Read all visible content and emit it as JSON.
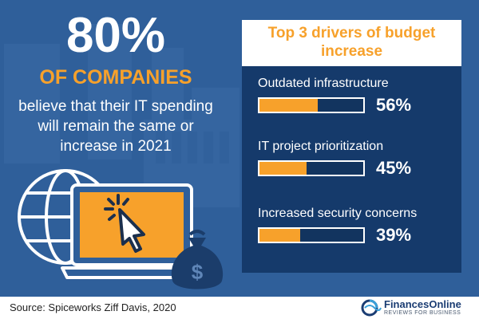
{
  "headline": {
    "percent": "80%",
    "subject": "OF COMPANIES",
    "description": "believe that their IT spending will remain the same or increase in 2021"
  },
  "chart_data": {
    "type": "bar",
    "title": "Top 3 drivers of budget increase",
    "categories": [
      "Outdated infrastructure",
      "IT project prioritization",
      "Increased security concerns"
    ],
    "values": [
      56,
      45,
      39
    ],
    "value_labels": [
      "56%",
      "45%",
      "39%"
    ],
    "ylim": [
      0,
      100
    ],
    "orientation": "horizontal"
  },
  "footer": {
    "source": "Source: Spiceworks Ziff Davis, 2020",
    "logo_name": "FinancesOnline",
    "logo_tagline": "REVIEWS FOR BUSINESS"
  },
  "icons": [
    "globe-icon",
    "laptop-icon",
    "cursor-click-icon",
    "money-bag-icon",
    "financesonline-logo-icon"
  ],
  "colors": {
    "background": "#2f5f9a",
    "panel": "#153a6b",
    "accent": "#f7a12b",
    "text": "#ffffff"
  }
}
